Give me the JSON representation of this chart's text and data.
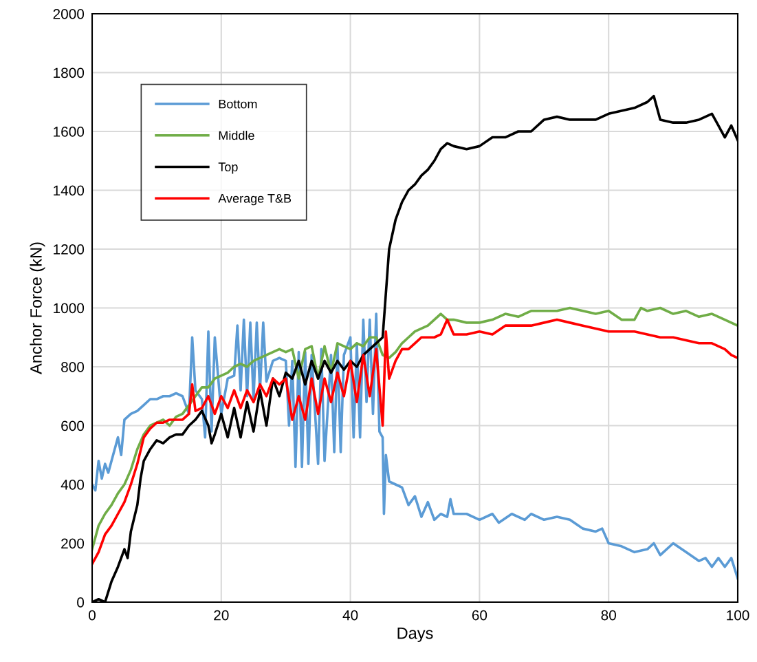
{
  "chart_data": {
    "type": "line",
    "xlabel": "Days",
    "ylabel": "Anchor Force (kN)",
    "xlim": [
      0,
      100
    ],
    "xticks": [
      0,
      20,
      40,
      60,
      80,
      100
    ],
    "ylim": [
      0,
      2000
    ],
    "yticks": [
      0,
      200,
      400,
      600,
      800,
      1000,
      1200,
      1400,
      1600,
      1800,
      2000
    ],
    "grid": true,
    "legend": "top left",
    "marker": "none",
    "line_style": "solid",
    "series": [
      {
        "name": "Bottom",
        "color": "#5b9bd5",
        "x": [
          0,
          0.5,
          1,
          1.5,
          2,
          2.5,
          3,
          4,
          4.5,
          5,
          6,
          7,
          8,
          9,
          10,
          11,
          12,
          13,
          14,
          15,
          15.5,
          16,
          17,
          17.5,
          18,
          18.5,
          19,
          20,
          21,
          22,
          22.5,
          23,
          23.5,
          24,
          24.5,
          25,
          25.5,
          26,
          26.5,
          27,
          28,
          29,
          30,
          30.5,
          31,
          31.5,
          32,
          32.5,
          33,
          33.5,
          34,
          35,
          35.5,
          36,
          37,
          37.5,
          38,
          38.5,
          39,
          40,
          40.5,
          41,
          41.5,
          42,
          42.5,
          43,
          43.5,
          44,
          44.5,
          45,
          45.2,
          45.5,
          46,
          47,
          48,
          49,
          50,
          51,
          52,
          53,
          54,
          55,
          55.5,
          56,
          58,
          60,
          62,
          63,
          65,
          67,
          68,
          70,
          72,
          74,
          76,
          78,
          79,
          80,
          82,
          84,
          86,
          87,
          88,
          90,
          92,
          94,
          95,
          96,
          97,
          98,
          99,
          100
        ],
        "values": [
          400,
          380,
          480,
          420,
          470,
          440,
          480,
          560,
          500,
          620,
          640,
          650,
          670,
          690,
          690,
          700,
          700,
          710,
          700,
          640,
          900,
          720,
          690,
          560,
          920,
          580,
          900,
          640,
          760,
          770,
          940,
          720,
          960,
          700,
          950,
          690,
          950,
          720,
          950,
          750,
          820,
          830,
          820,
          600,
          820,
          460,
          850,
          460,
          850,
          470,
          840,
          470,
          860,
          480,
          840,
          510,
          870,
          510,
          840,
          900,
          560,
          880,
          560,
          960,
          680,
          960,
          640,
          980,
          580,
          560,
          300,
          500,
          410,
          400,
          390,
          330,
          360,
          290,
          340,
          280,
          300,
          290,
          350,
          300,
          300,
          280,
          300,
          270,
          300,
          280,
          300,
          280,
          290,
          280,
          250,
          240,
          250,
          200,
          190,
          170,
          180,
          200,
          160,
          200,
          170,
          140,
          150,
          120,
          150,
          120,
          150,
          80
        ]
      },
      {
        "name": "Middle",
        "color": "#70ad47",
        "x": [
          0,
          0.5,
          1,
          2,
          3,
          4,
          5,
          6,
          7,
          8,
          9,
          10,
          11,
          12,
          13,
          14,
          15,
          16,
          17,
          18,
          19,
          20,
          21,
          22,
          23,
          24,
          25,
          26,
          27,
          28,
          29,
          30,
          31,
          32,
          33,
          34,
          35,
          36,
          37,
          38,
          39,
          40,
          41,
          42,
          43,
          44,
          45,
          46,
          47,
          48,
          49,
          50,
          52,
          53,
          54,
          55,
          56,
          58,
          60,
          62,
          64,
          66,
          68,
          70,
          72,
          74,
          76,
          78,
          80,
          82,
          84,
          85,
          86,
          88,
          90,
          92,
          94,
          96,
          98,
          100
        ],
        "values": [
          180,
          220,
          260,
          300,
          330,
          370,
          400,
          450,
          520,
          570,
          600,
          610,
          620,
          600,
          630,
          640,
          670,
          700,
          730,
          730,
          760,
          770,
          780,
          800,
          810,
          800,
          820,
          830,
          840,
          850,
          860,
          850,
          860,
          760,
          860,
          870,
          760,
          870,
          780,
          880,
          870,
          860,
          880,
          870,
          900,
          900,
          840,
          830,
          850,
          880,
          900,
          920,
          940,
          960,
          980,
          960,
          960,
          950,
          950,
          960,
          980,
          970,
          990,
          990,
          990,
          1000,
          990,
          980,
          990,
          960,
          960,
          1000,
          990,
          1000,
          980,
          990,
          970,
          980,
          960,
          940
        ]
      },
      {
        "name": "Top",
        "color": "#000000",
        "x": [
          0,
          1,
          2,
          3,
          4,
          5,
          5.5,
          6,
          7,
          7.5,
          8,
          9,
          10,
          11,
          12,
          13,
          14,
          15,
          16,
          17,
          18,
          18.5,
          19,
          20,
          21,
          22,
          23,
          24,
          25,
          26,
          27,
          28,
          29,
          30,
          31,
          32,
          33,
          34,
          35,
          36,
          37,
          38,
          39,
          40,
          41,
          42,
          43,
          44,
          45,
          45.5,
          46,
          47,
          48,
          49,
          50,
          51,
          52,
          53,
          54,
          55,
          56,
          58,
          60,
          62,
          64,
          66,
          68,
          70,
          72,
          74,
          76,
          78,
          80,
          82,
          84,
          86,
          87,
          88,
          90,
          92,
          94,
          96,
          97,
          98,
          99,
          100
        ],
        "values": [
          0,
          10,
          0,
          70,
          120,
          180,
          150,
          240,
          330,
          420,
          480,
          520,
          550,
          540,
          560,
          570,
          570,
          600,
          620,
          650,
          600,
          540,
          570,
          640,
          560,
          660,
          560,
          680,
          580,
          720,
          600,
          760,
          700,
          780,
          760,
          820,
          740,
          820,
          760,
          820,
          780,
          820,
          790,
          820,
          800,
          840,
          860,
          880,
          900,
          1050,
          1200,
          1300,
          1360,
          1400,
          1420,
          1450,
          1470,
          1500,
          1540,
          1560,
          1550,
          1540,
          1550,
          1580,
          1580,
          1600,
          1600,
          1640,
          1650,
          1640,
          1640,
          1640,
          1660,
          1670,
          1680,
          1700,
          1720,
          1640,
          1630,
          1630,
          1640,
          1660,
          1620,
          1580,
          1620,
          1570
        ]
      },
      {
        "name": "Average T&B",
        "color": "#ff0000",
        "x": [
          0,
          1,
          2,
          3,
          4,
          5,
          6,
          7,
          8,
          9,
          10,
          11,
          12,
          13,
          14,
          15,
          15.5,
          16,
          17,
          18,
          19,
          20,
          21,
          22,
          23,
          24,
          25,
          26,
          27,
          28,
          29,
          30,
          31,
          32,
          33,
          34,
          35,
          36,
          37,
          38,
          39,
          40,
          41,
          42,
          43,
          44,
          45,
          45.5,
          46,
          47,
          48,
          49,
          50,
          51,
          52,
          53,
          54,
          55,
          56,
          58,
          60,
          62,
          64,
          66,
          68,
          70,
          72,
          74,
          76,
          78,
          80,
          82,
          84,
          86,
          88,
          90,
          92,
          94,
          96,
          98,
          99,
          100
        ],
        "values": [
          130,
          170,
          230,
          260,
          300,
          340,
          400,
          470,
          560,
          590,
          610,
          610,
          620,
          620,
          620,
          640,
          740,
          650,
          660,
          700,
          640,
          700,
          660,
          720,
          660,
          720,
          680,
          740,
          700,
          760,
          740,
          760,
          620,
          700,
          620,
          760,
          640,
          760,
          680,
          780,
          700,
          820,
          680,
          840,
          700,
          860,
          600,
          920,
          760,
          820,
          860,
          860,
          880,
          900,
          900,
          900,
          910,
          960,
          910,
          910,
          920,
          910,
          940,
          940,
          940,
          950,
          960,
          950,
          940,
          930,
          920,
          920,
          920,
          910,
          900,
          900,
          890,
          880,
          880,
          860,
          840,
          830
        ]
      }
    ]
  }
}
